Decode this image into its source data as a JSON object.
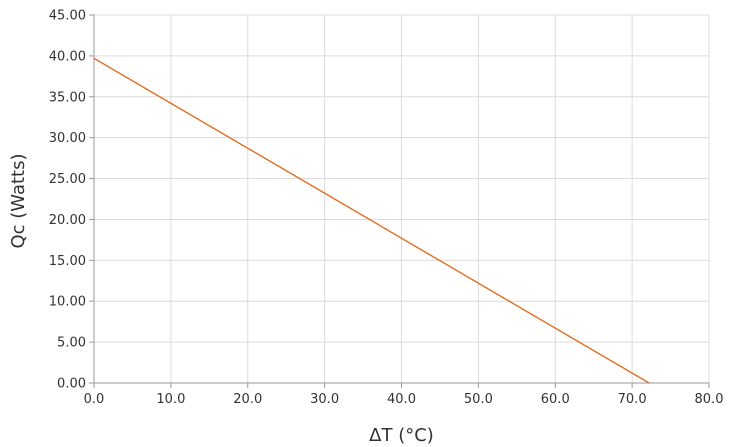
{
  "chart_data": {
    "type": "line",
    "title": "",
    "xlabel": "ΔT (°C)",
    "ylabel": "Qc (Watts)",
    "xlim": [
      0,
      80
    ],
    "ylim": [
      0,
      45
    ],
    "x_ticks": [
      "0.0",
      "10.0",
      "20.0",
      "30.0",
      "40.0",
      "50.0",
      "60.0",
      "70.0",
      "80.0"
    ],
    "y_ticks": [
      "0.00",
      "5.00",
      "10.00",
      "15.00",
      "20.00",
      "25.00",
      "30.00",
      "35.00",
      "40.00",
      "45.00"
    ],
    "grid": true,
    "legend": "none",
    "series": [
      {
        "color": "#e8630a",
        "x": [
          0,
          72.2
        ],
        "y": [
          39.7,
          0
        ]
      }
    ]
  },
  "colors": {
    "grid": "#dcdcdc",
    "axis": "#999999",
    "text": "#333333"
  }
}
